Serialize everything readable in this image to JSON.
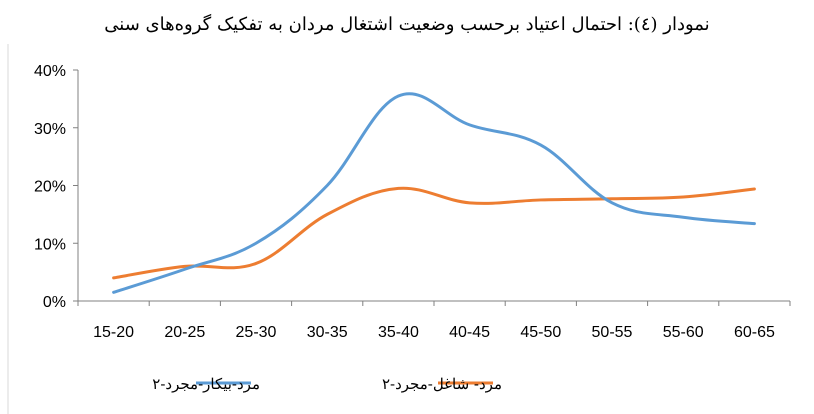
{
  "chart_data": {
    "type": "line",
    "title": "نمودار (٤): احتمال اعتیاد برحسب وضعیت اشتغال مردان به تفکیک گروه‌های سنی",
    "xlabel": "",
    "ylabel": "",
    "categories": [
      "15-20",
      "20-25",
      "25-30",
      "30-35",
      "35-40",
      "40-45",
      "45-50",
      "50-55",
      "55-60",
      "60-65"
    ],
    "series": [
      {
        "name": "مرد-بیکار-مجرد-۲",
        "color": "#5B9BD5",
        "values": [
          1.5,
          5.5,
          10.0,
          20.0,
          35.5,
          30.5,
          27.0,
          17.0,
          14.5,
          13.4
        ]
      },
      {
        "name": "مرد- شاغل-مجرد-۲",
        "color": "#ED7D31",
        "values": [
          4.0,
          6.0,
          6.5,
          15.0,
          19.5,
          17.0,
          17.5,
          17.7,
          18.0,
          19.4
        ]
      }
    ],
    "ylim": [
      0,
      40
    ],
    "yticks": [
      "0%",
      "10%",
      "20%",
      "30%",
      "40%"
    ],
    "grid": false,
    "legend_position": "bottom"
  }
}
